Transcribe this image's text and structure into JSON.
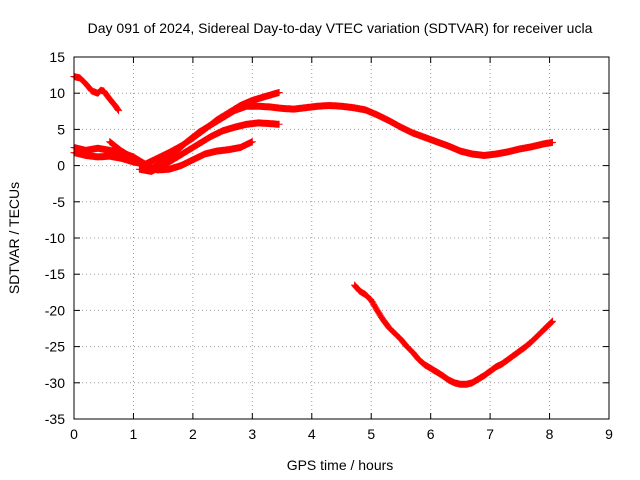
{
  "chart_data": {
    "type": "scatter",
    "title": "Day 091 of 2024, Sidereal Day-to-day VTEC variation (SDTVAR) for receiver ucla",
    "xlabel": "GPS time / hours",
    "ylabel": "SDTVAR / TECUs",
    "xlim": [
      0,
      9
    ],
    "ylim": [
      -35,
      15
    ],
    "xticks": [
      0,
      1,
      2,
      3,
      4,
      5,
      6,
      7,
      8,
      9
    ],
    "yticks": [
      15,
      10,
      5,
      0,
      -5,
      -10,
      -15,
      -20,
      -25,
      -30,
      -35
    ],
    "grid": true,
    "marker": "plus",
    "color": "#ff0000",
    "series": [
      {
        "name": "track-1",
        "x": [
          0.0,
          0.1,
          0.2,
          0.3,
          0.4,
          0.45,
          0.5,
          0.6,
          0.7,
          0.75
        ],
        "y": [
          12.3,
          12.1,
          11.3,
          10.3,
          10.0,
          10.4,
          10.3,
          9.2,
          8.2,
          7.6
        ]
      },
      {
        "name": "track-2",
        "x": [
          0.0,
          0.2,
          0.4,
          0.6,
          0.8,
          1.0,
          1.2,
          1.3,
          1.5,
          1.7,
          1.9,
          2.1,
          2.3,
          2.5,
          2.7,
          2.9,
          3.1,
          3.3,
          3.5,
          3.7,
          3.9,
          4.1,
          4.3,
          4.5,
          4.7,
          4.9,
          5.1,
          5.3,
          5.5,
          5.7,
          5.9,
          6.1,
          6.3,
          6.5,
          6.7,
          6.9,
          7.1,
          7.3,
          7.5,
          7.7,
          7.9,
          8.05
        ],
        "y": [
          1.8,
          1.4,
          1.2,
          1.3,
          1.0,
          0.5,
          0.2,
          -0.4,
          0.5,
          1.8,
          3.3,
          4.6,
          5.6,
          6.6,
          7.6,
          8.2,
          8.2,
          8.1,
          7.9,
          7.8,
          8.0,
          8.2,
          8.3,
          8.2,
          8.0,
          7.7,
          7.0,
          6.2,
          5.3,
          4.5,
          3.9,
          3.3,
          2.7,
          2.0,
          1.6,
          1.4,
          1.6,
          1.9,
          2.3,
          2.6,
          3.0,
          3.2
        ]
      },
      {
        "name": "track-3",
        "x": [
          0.0,
          0.2,
          0.4,
          0.6,
          0.8,
          1.0,
          1.2,
          1.4,
          1.6,
          1.8,
          2.0,
          2.2,
          2.4,
          2.6,
          2.8,
          3.0,
          3.2,
          3.45
        ],
        "y": [
          2.5,
          2.1,
          2.4,
          2.1,
          1.8,
          1.2,
          0.2,
          1.0,
          1.8,
          2.7,
          3.8,
          5.0,
          6.3,
          7.3,
          8.3,
          9.0,
          9.5,
          10.1
        ]
      },
      {
        "name": "track-4",
        "x": [
          0.6,
          0.8,
          1.0,
          1.2,
          1.4,
          1.6,
          1.8,
          2.0,
          2.2,
          2.4,
          2.6,
          2.8,
          3.0
        ],
        "y": [
          3.3,
          2.0,
          1.0,
          0.0,
          -0.6,
          -0.5,
          0.0,
          0.8,
          1.6,
          2.0,
          2.2,
          2.5,
          3.3
        ]
      },
      {
        "name": "track-5",
        "x": [
          1.1,
          1.3,
          1.5,
          1.7,
          1.9,
          2.1,
          2.3,
          2.5,
          2.7,
          2.9,
          3.1,
          3.3,
          3.45
        ],
        "y": [
          -0.5,
          -0.8,
          0.0,
          1.0,
          2.0,
          3.0,
          4.0,
          4.8,
          5.3,
          5.7,
          5.9,
          5.8,
          5.7
        ]
      },
      {
        "name": "track-6",
        "x": [
          4.72,
          4.8,
          4.9,
          5.0,
          5.1,
          5.2,
          5.3,
          5.4,
          5.5,
          5.6,
          5.7,
          5.8,
          5.9,
          6.0,
          6.1,
          6.2,
          6.3,
          6.4,
          6.5,
          6.6,
          6.7,
          6.8,
          6.9,
          7.0,
          7.1,
          7.2,
          7.3,
          7.4,
          7.5,
          7.6,
          7.7,
          7.8,
          7.9,
          8.05
        ],
        "y": [
          -16.5,
          -17.3,
          -17.8,
          -18.6,
          -20.0,
          -21.3,
          -22.4,
          -23.2,
          -24.0,
          -25.0,
          -25.8,
          -26.8,
          -27.5,
          -28.0,
          -28.5,
          -29.0,
          -29.6,
          -30.0,
          -30.2,
          -30.2,
          -30.0,
          -29.5,
          -29.0,
          -28.4,
          -27.8,
          -27.4,
          -26.8,
          -26.2,
          -25.6,
          -25.0,
          -24.3,
          -23.5,
          -22.7,
          -21.5
        ]
      }
    ]
  }
}
